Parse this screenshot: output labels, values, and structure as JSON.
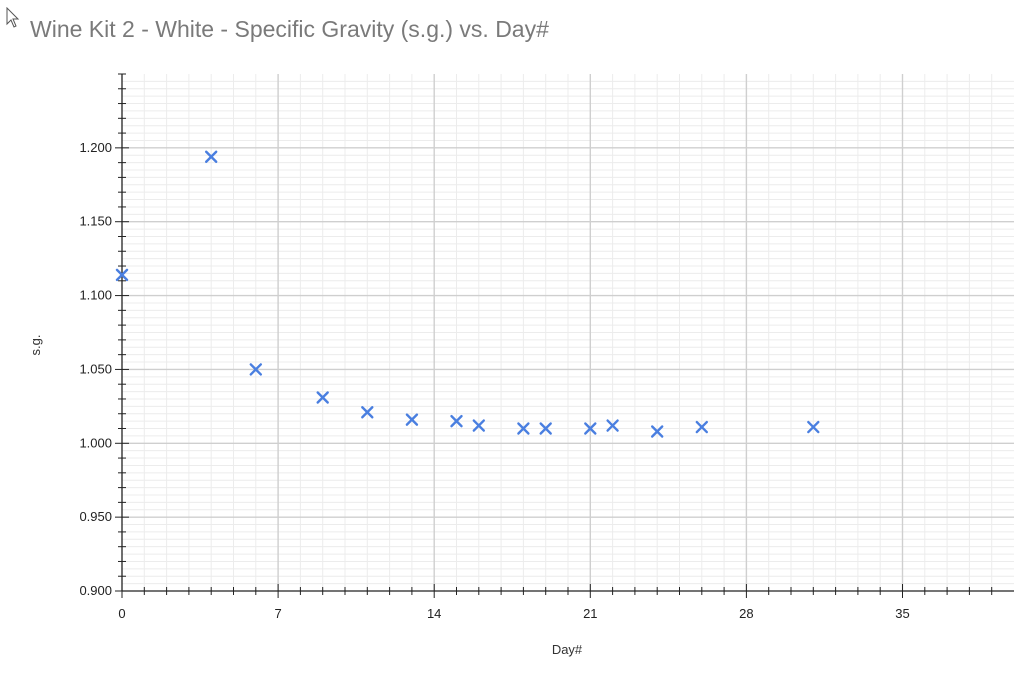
{
  "chart_data": {
    "type": "scatter",
    "title": "Wine Kit 2 - White - Specific Gravity (s.g.) vs. Day#",
    "xlabel": "Day#",
    "ylabel": "s.g.",
    "xlim": [
      0,
      40
    ],
    "ylim": [
      0.9,
      1.25
    ],
    "x_ticks": [
      0,
      7,
      14,
      21,
      28,
      35
    ],
    "x_tick_labels": [
      "0",
      "7",
      "14",
      "21",
      "28",
      "35"
    ],
    "y_ticks": [
      0.9,
      0.95,
      1.0,
      1.05,
      1.1,
      1.15,
      1.2
    ],
    "y_tick_labels": [
      "0.900",
      "0.950",
      "1.000",
      "1.050",
      "1.100",
      "1.150",
      "1.200"
    ],
    "grid": true,
    "marker": "x",
    "marker_color": "#4a7fe0",
    "series": [
      {
        "points": [
          {
            "x": 0,
            "y": 1.114
          },
          {
            "x": 4,
            "y": 1.194
          },
          {
            "x": 6,
            "y": 1.05
          },
          {
            "x": 9,
            "y": 1.031
          },
          {
            "x": 11,
            "y": 1.021
          },
          {
            "x": 13,
            "y": 1.016
          },
          {
            "x": 15,
            "y": 1.015
          },
          {
            "x": 16,
            "y": 1.012
          },
          {
            "x": 18,
            "y": 1.01
          },
          {
            "x": 19,
            "y": 1.01
          },
          {
            "x": 21,
            "y": 1.01
          },
          {
            "x": 22,
            "y": 1.012
          },
          {
            "x": 24,
            "y": 1.008
          },
          {
            "x": 26,
            "y": 1.011
          },
          {
            "x": 31,
            "y": 1.011
          }
        ]
      }
    ]
  }
}
